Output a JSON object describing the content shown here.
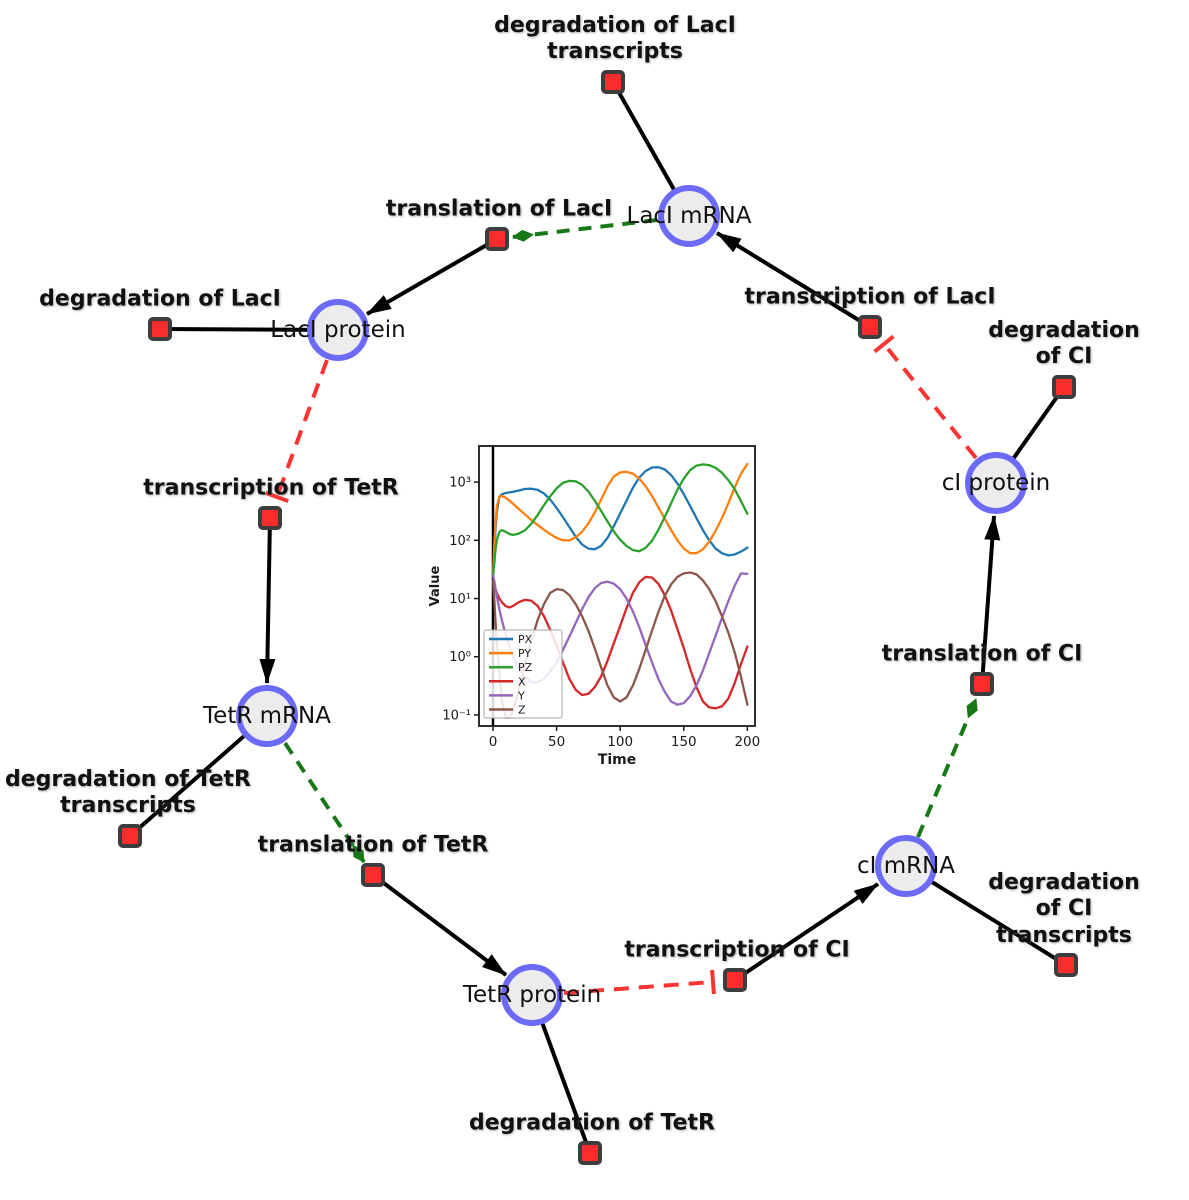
{
  "graph": {
    "species": [
      {
        "id": "laci-mrna",
        "label": "LacI mRNA"
      },
      {
        "id": "laci-protein",
        "label": "LacI protein"
      },
      {
        "id": "tetr-mrna",
        "label": "TetR mRNA"
      },
      {
        "id": "tetr-protein",
        "label": "TetR protein"
      },
      {
        "id": "ci-mrna",
        "label": "cI mRNA"
      },
      {
        "id": "ci-protein",
        "label": "cI protein"
      }
    ],
    "reactions": [
      {
        "id": "deg-laci-transcripts",
        "label": "degradation of LacI\ntranscripts"
      },
      {
        "id": "translation-laci",
        "label": "translation of LacI"
      },
      {
        "id": "deg-laci",
        "label": "degradation of LacI"
      },
      {
        "id": "transcription-laci",
        "label": "transcription of LacI"
      },
      {
        "id": "deg-ci",
        "label": "degradation of CI"
      },
      {
        "id": "transcription-tetr",
        "label": "transcription of TetR"
      },
      {
        "id": "translation-ci",
        "label": "translation of CI"
      },
      {
        "id": "deg-tetr-transcripts",
        "label": "degradation of TetR\ntranscripts"
      },
      {
        "id": "translation-tetr",
        "label": "translation of TetR"
      },
      {
        "id": "deg-tetr",
        "label": "degradation of TetR"
      },
      {
        "id": "transcription-ci",
        "label": "transcription of CI"
      },
      {
        "id": "deg-ci-transcripts",
        "label": "degradation of CI\ntranscripts"
      }
    ],
    "colors": {
      "species_fill": "#ececec",
      "species_border": "#6b6bf7",
      "reaction_fill": "#fa2d2d",
      "reaction_border": "#3d3d3d",
      "edge_black": "#000000",
      "edge_activation_green": "#187818",
      "edge_inhibition_red": "#fb3333",
      "label_color": "#111111"
    }
  },
  "chart_data": {
    "type": "line",
    "title": "",
    "xlabel": "Time",
    "ylabel": "Value",
    "yscale": "log",
    "grid": false,
    "legend_position": "lower left",
    "xlim": [
      -11,
      206
    ],
    "ylim_log10": [
      -1.19,
      3.62
    ],
    "x_ticks": [
      0,
      50,
      100,
      150,
      200
    ],
    "y_tick_exponents": [
      -1,
      0,
      1,
      2,
      3
    ],
    "y_tick_labels": [
      "10⁻¹",
      "10⁰",
      "10¹",
      "10²",
      "10³"
    ],
    "annotations": [
      {
        "type": "vline",
        "x": 0,
        "color": "#000000"
      }
    ],
    "x": [
      0,
      1,
      2,
      3,
      5,
      7,
      10,
      13,
      16,
      20,
      25,
      30,
      35,
      40,
      45,
      50,
      55,
      60,
      65,
      70,
      75,
      80,
      85,
      90,
      95,
      100,
      105,
      110,
      115,
      120,
      125,
      130,
      135,
      140,
      145,
      150,
      155,
      160,
      165,
      170,
      175,
      180,
      185,
      190,
      195,
      200
    ],
    "series": [
      {
        "name": "PX",
        "color": "#1f77b4",
        "values": [
          25,
          60,
          150,
          300,
          560,
          620,
          650,
          665,
          680,
          715,
          760,
          770,
          740,
          640,
          500,
          360,
          250,
          170,
          115,
          85,
          72,
          70,
          80,
          110,
          175,
          290,
          480,
          800,
          1200,
          1550,
          1780,
          1800,
          1650,
          1320,
          950,
          620,
          390,
          240,
          150,
          100,
          72,
          60,
          55,
          57,
          64,
          75
        ]
      },
      {
        "name": "PY",
        "color": "#ff7f0e",
        "values": [
          25,
          80,
          200,
          380,
          560,
          580,
          540,
          480,
          420,
          350,
          280,
          225,
          185,
          152,
          128,
          110,
          100,
          100,
          112,
          140,
          195,
          300,
          500,
          850,
          1250,
          1470,
          1500,
          1400,
          1150,
          850,
          580,
          370,
          235,
          150,
          100,
          72,
          60,
          60,
          70,
          95,
          145,
          240,
          430,
          800,
          1400,
          2050
        ]
      },
      {
        "name": "PZ",
        "color": "#2ca02c",
        "values": [
          25,
          40,
          70,
          100,
          140,
          150,
          140,
          128,
          124,
          130,
          148,
          190,
          270,
          400,
          570,
          780,
          970,
          1050,
          1030,
          900,
          690,
          480,
          320,
          210,
          142,
          102,
          80,
          68,
          65,
          74,
          98,
          150,
          250,
          430,
          740,
          1150,
          1600,
          1920,
          2010,
          1950,
          1760,
          1450,
          1080,
          760,
          470,
          285
        ]
      },
      {
        "name": "X",
        "color": "#d62728",
        "values": [
          20,
          17,
          14.5,
          12.5,
          10,
          8.6,
          7.4,
          7.0,
          7.5,
          8.6,
          9.5,
          9.2,
          7.5,
          5.0,
          2.9,
          1.55,
          0.8,
          0.42,
          0.27,
          0.22,
          0.23,
          0.3,
          0.46,
          0.85,
          1.7,
          3.4,
          6.8,
          12.5,
          19,
          23.5,
          23,
          18,
          11.5,
          6.2,
          3.0,
          1.4,
          0.62,
          0.3,
          0.17,
          0.135,
          0.13,
          0.14,
          0.19,
          0.35,
          0.75,
          1.5
        ]
      },
      {
        "name": "Y",
        "color": "#9467bd",
        "values": [
          25,
          20,
          15,
          11,
          6.5,
          4.2,
          2.4,
          1.5,
          1.0,
          0.65,
          0.45,
          0.37,
          0.36,
          0.42,
          0.56,
          0.8,
          1.3,
          2.2,
          3.8,
          6.5,
          10.5,
          15,
          18.5,
          19.5,
          18,
          14.5,
          10,
          6,
          3.2,
          1.6,
          0.8,
          0.42,
          0.25,
          0.17,
          0.15,
          0.16,
          0.21,
          0.32,
          0.58,
          1.15,
          2.3,
          4.6,
          9,
          16.5,
          27,
          26.5
        ]
      },
      {
        "name": "Z",
        "color": "#8c564b",
        "values": [
          20,
          10,
          4,
          1.8,
          0.5,
          0.18,
          0.09,
          0.09,
          0.12,
          0.25,
          0.7,
          1.8,
          4.2,
          8,
          12.5,
          14.5,
          14,
          11.5,
          8,
          5,
          2.8,
          1.4,
          0.66,
          0.32,
          0.2,
          0.17,
          0.2,
          0.32,
          0.62,
          1.3,
          2.8,
          5.8,
          11,
          17.5,
          23.5,
          27,
          28,
          26,
          20.5,
          14.5,
          9,
          5,
          2.6,
          1.2,
          0.45,
          0.15
        ]
      }
    ]
  }
}
